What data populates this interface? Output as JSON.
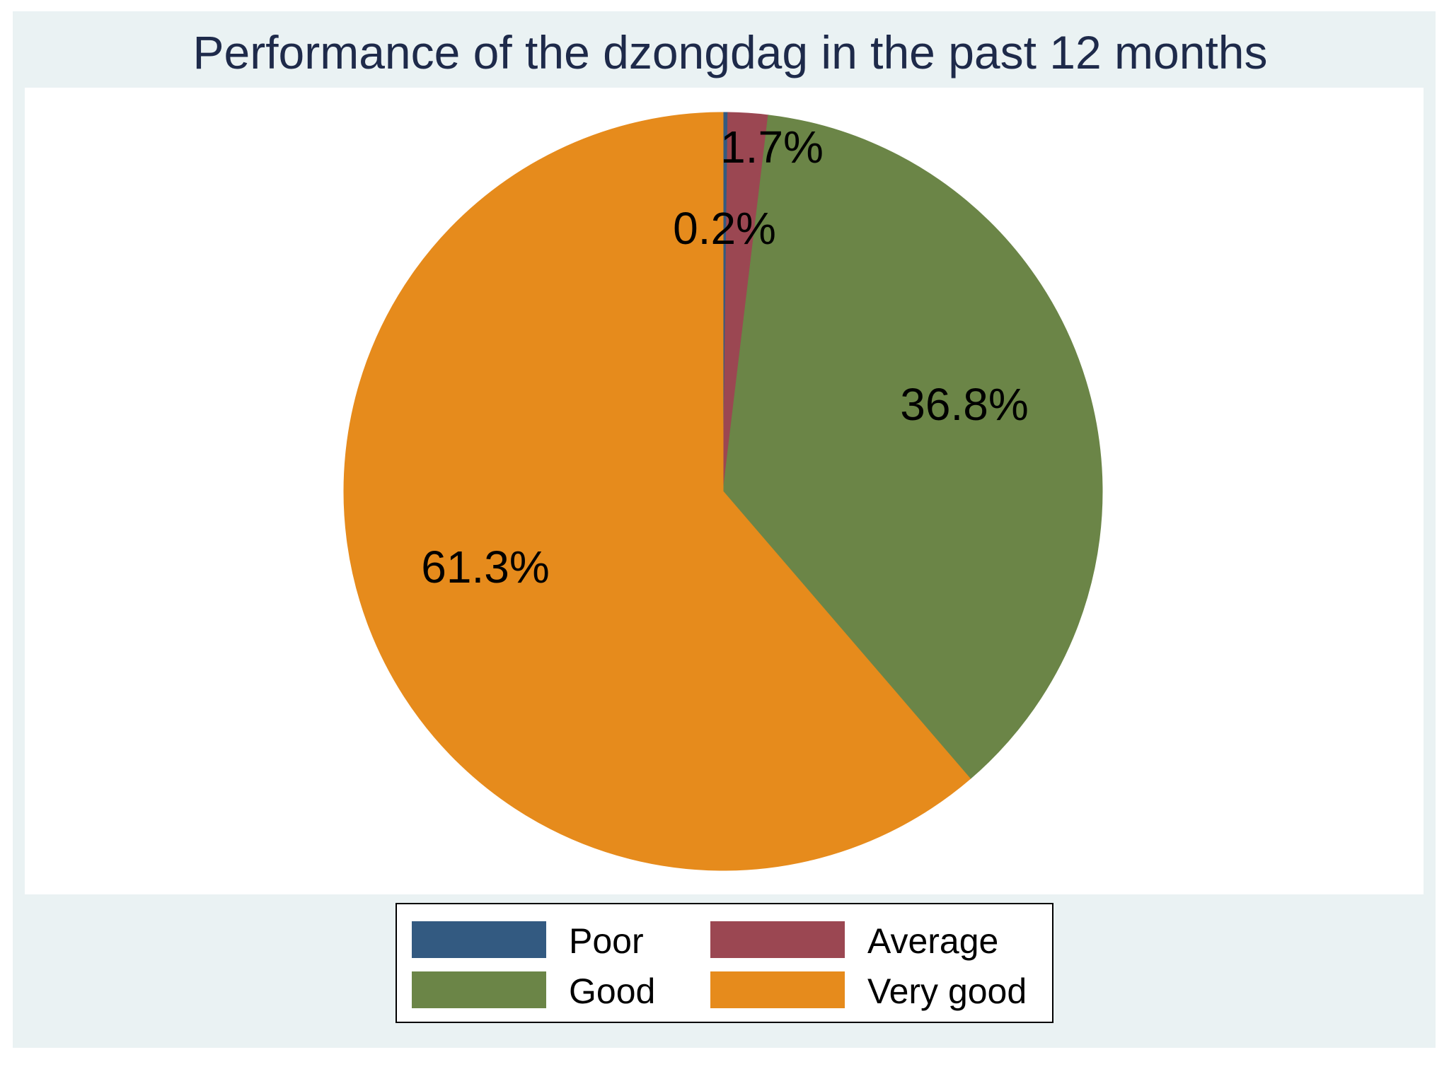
{
  "chart_data": {
    "type": "pie",
    "title": "Performance of the dzongdag in the past 12 months",
    "start_angle": "12 o'clock",
    "direction": "clockwise",
    "categories": [
      "Poor",
      "Average",
      "Good",
      "Very good"
    ],
    "values": [
      0.2,
      1.7,
      36.8,
      61.3
    ],
    "value_labels": [
      "0.2%",
      "1.7%",
      "36.8%",
      "61.3%"
    ],
    "colors": [
      "#335a81",
      "#9b4752",
      "#6b8547",
      "#e68b1c"
    ],
    "legend_placement": "bottom",
    "background_colors": {
      "outer": "#eaf2f3",
      "plot": "#ffffff"
    }
  }
}
